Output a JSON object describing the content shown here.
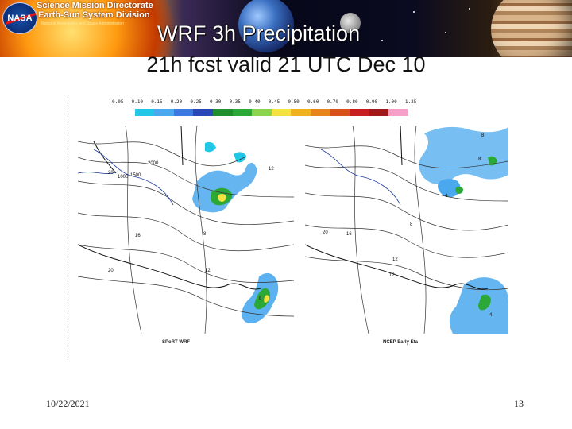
{
  "banner": {
    "org_line1": "Science Mission Directorate",
    "org_line2": "Earth-Sun System Division",
    "org_line3": "National Aeronautics and Space Administration",
    "logo_text": "NASA"
  },
  "slide": {
    "title_line1": "WRF 3h Precipitation",
    "title_line2": "21h fcst valid 21 UTC Dec 10"
  },
  "figure": {
    "scale_ticks": [
      "0.05",
      "0.10",
      "0.15",
      "0.20",
      "0.25",
      "0.30",
      "0.35",
      "0.40",
      "0.45",
      "0.50",
      "0.60",
      "0.70",
      "0.80",
      "0.90",
      "1.00",
      "1.25"
    ],
    "scale_colors": [
      "#ffffff",
      "#22c7e8",
      "#4aa8ee",
      "#3d78e0",
      "#2848b8",
      "#1e8f2a",
      "#2ca838",
      "#8bd450",
      "#f4e240",
      "#f0b21c",
      "#e8841c",
      "#d8501a",
      "#c82020",
      "#a01818",
      "#f4a0c8",
      "#ffffff"
    ],
    "left_panel": {
      "caption": "SPoRT WRF",
      "labels": [
        "2000",
        "20",
        "1500",
        "1000",
        "16",
        "12",
        "12",
        "8",
        "20",
        "8"
      ]
    },
    "right_panel": {
      "caption": "NCEP Early Eta",
      "labels": [
        "8",
        "8",
        "4",
        "20",
        "16",
        "12",
        "12",
        "8",
        "4"
      ]
    }
  },
  "footer": {
    "date": "10/22/2021",
    "page_number": "13"
  }
}
